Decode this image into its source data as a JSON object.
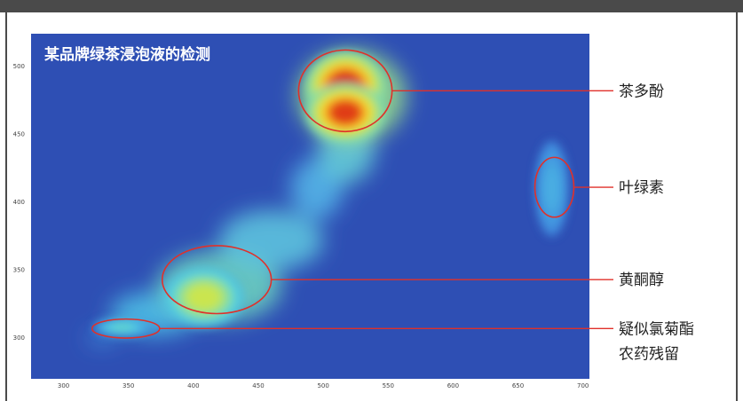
{
  "chart_data": {
    "type": "heatmap",
    "title": "某品牌绿茶浸泡液的检测",
    "xlabel": "",
    "ylabel": "",
    "xlim": [
      275,
      705
    ],
    "ylim": [
      270,
      524
    ],
    "x_ticks": [
      300,
      350,
      400,
      450,
      500,
      550,
      600,
      650,
      700
    ],
    "y_ticks": [
      500,
      450,
      400,
      350,
      300
    ],
    "colormap": "jet",
    "colors": {
      "background": "#2e4fb4",
      "topbar": "#4a4a4a",
      "annotation_line": "#e0302a"
    },
    "peaks": [
      {
        "label": "茶多酚",
        "x": 517,
        "y": 485,
        "rx": 14,
        "ry": 12,
        "intensity": 1.0
      },
      {
        "label": "茶多酚",
        "x": 517,
        "y": 466,
        "rx": 14,
        "ry": 10,
        "intensity": 0.95
      },
      {
        "label": "黄酮醇",
        "x": 408,
        "y": 330,
        "rx": 14,
        "ry": 10,
        "intensity": 0.55
      },
      {
        "label": "疑似氯菊酯农药残留",
        "x": 345,
        "y": 308,
        "rx": 10,
        "ry": 3,
        "intensity": 0.3
      },
      {
        "label": "叶绿素",
        "x": 676,
        "y": 410,
        "rx": 6,
        "ry": 16,
        "intensity": 0.15
      }
    ],
    "annotations": [
      {
        "lines": [
          "茶多酚"
        ],
        "center_x": 517,
        "center_y": 482,
        "radius_x": 36,
        "radius_y": 30
      },
      {
        "lines": [
          "叶绿素"
        ],
        "center_x": 678,
        "center_y": 411,
        "radius_x": 15,
        "radius_y": 22
      },
      {
        "lines": [
          "黄酮醇"
        ],
        "center_x": 418,
        "center_y": 343,
        "radius_x": 42,
        "radius_y": 25
      },
      {
        "lines": [
          "疑似氯菊酯",
          "农药残留"
        ],
        "center_x": 348,
        "center_y": 307,
        "radius_x": 26,
        "radius_y": 7
      }
    ]
  }
}
